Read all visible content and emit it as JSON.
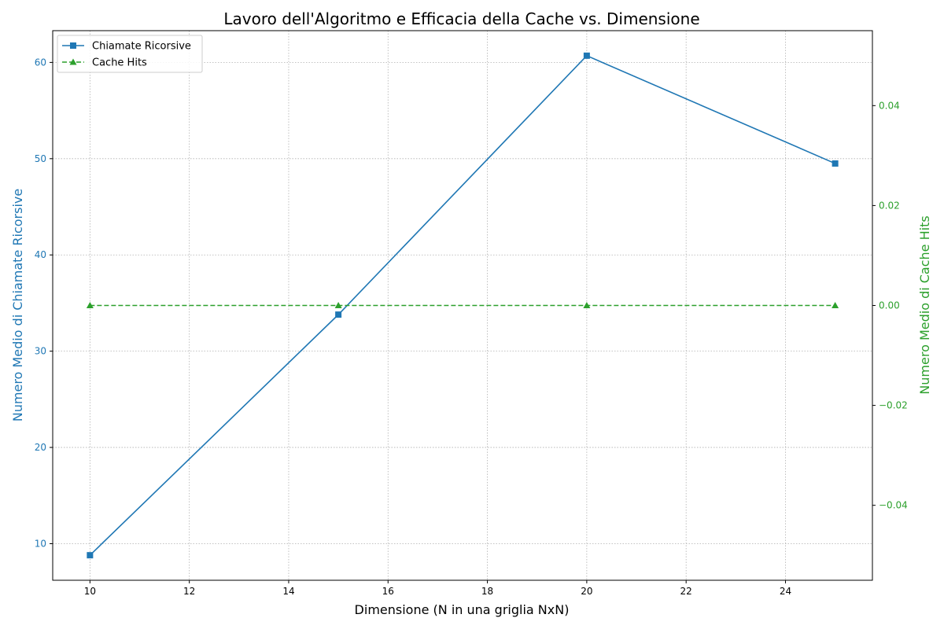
{
  "chart_data": {
    "type": "line",
    "title": "Lavoro dell'Algoritmo e Efficacia della Cache vs. Dimensione",
    "xlabel": "Dimensione (N in una griglia NxN)",
    "ylabel_left": "Numero Medio di Chiamate Ricorsive",
    "ylabel_right": "Numero Medio di Cache Hits",
    "x": [
      10,
      15,
      20,
      25
    ],
    "xlim": [
      9.25,
      25.75
    ],
    "xticks": [
      10,
      12,
      14,
      16,
      18,
      20,
      22,
      24
    ],
    "ylim_left": [
      6.2,
      63.3
    ],
    "yticks_left": [
      10,
      20,
      30,
      40,
      50,
      60
    ],
    "ylim_right": [
      -0.055,
      0.055
    ],
    "yticks_right": [
      -0.04,
      -0.02,
      0.0,
      0.02,
      0.04
    ],
    "grid": true,
    "legend_position": "top-left",
    "series": [
      {
        "name": "Chiamate Ricorsive",
        "axis": "left",
        "values": [
          8.8,
          33.8,
          60.7,
          49.5
        ],
        "color": "#1f77b4",
        "marker": "square",
        "linestyle": "solid"
      },
      {
        "name": "Cache Hits",
        "axis": "right",
        "values": [
          0,
          0,
          0,
          0
        ],
        "color": "#2ca02c",
        "marker": "triangle",
        "linestyle": "dashed"
      }
    ]
  }
}
